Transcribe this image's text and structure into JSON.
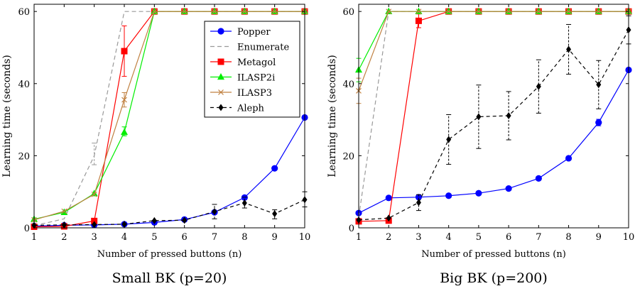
{
  "chart_data": [
    {
      "type": "line",
      "caption": "Small BK (p=20)",
      "xlabel": "Number of pressed buttons (n)",
      "ylabel": "Learning time (seconds)",
      "xlim": [
        1,
        10
      ],
      "ylim": [
        0,
        62
      ],
      "xticks": [
        1,
        2,
        3,
        4,
        5,
        6,
        7,
        8,
        9,
        10
      ],
      "yticks": [
        0,
        20,
        40,
        60
      ],
      "grid": false,
      "legend": "top-right",
      "series": [
        {
          "name": "Popper",
          "color": "#0000ff",
          "dash": "",
          "marker": "circle",
          "x": [
            1,
            2,
            3,
            4,
            5,
            6,
            7,
            8,
            9,
            10
          ],
          "y": [
            0.5,
            0.7,
            0.8,
            1.0,
            1.5,
            2.3,
            4.3,
            8.4,
            16.5,
            30.6
          ],
          "err": []
        },
        {
          "name": "Enumerate",
          "color": "#999999",
          "dash": "6,4",
          "marker": "none",
          "x": [
            1,
            2,
            3,
            4,
            5,
            6,
            7,
            8,
            9,
            10
          ],
          "y": [
            0.6,
            2.5,
            20.0,
            60,
            60,
            60,
            60,
            60,
            60,
            60
          ],
          "err": [
            [
              3,
              17.5,
              23.5
            ]
          ]
        },
        {
          "name": "Metagol",
          "color": "#ff0000",
          "dash": "",
          "marker": "square",
          "x": [
            1,
            2,
            3,
            4,
            5,
            6,
            7,
            8,
            9,
            10
          ],
          "y": [
            0.3,
            0.4,
            1.9,
            49.0,
            60,
            60,
            60,
            60,
            60,
            60
          ],
          "err": [
            [
              4,
              42.0,
              56.0
            ]
          ]
        },
        {
          "name": "ILASP2i",
          "color": "#00ee00",
          "dash": "",
          "marker": "triangle",
          "x": [
            1,
            2,
            3,
            4,
            5,
            6,
            7,
            8,
            9,
            10
          ],
          "y": [
            2.4,
            4.3,
            9.5,
            26.5,
            60,
            60,
            60,
            60,
            60,
            60
          ],
          "err": [
            [
              4,
              25.5,
              28.0
            ]
          ]
        },
        {
          "name": "ILASP3",
          "color": "#c08040",
          "dash": "",
          "marker": "cross",
          "x": [
            1,
            2,
            3,
            4,
            5,
            6,
            7,
            8,
            9,
            10
          ],
          "y": [
            2.2,
            4.6,
            9.3,
            35.5,
            60,
            60,
            60,
            60,
            60,
            60
          ],
          "err": [
            [
              4,
              33.5,
              37.5
            ]
          ]
        },
        {
          "name": "Aleph",
          "color": "#000000",
          "dash": "5,4",
          "marker": "diamond",
          "x": [
            1,
            2,
            3,
            4,
            5,
            6,
            7,
            8,
            9,
            10
          ],
          "y": [
            0.7,
            0.8,
            0.9,
            1.0,
            2.0,
            2.1,
            4.5,
            6.9,
            3.9,
            7.8
          ],
          "err": [
            [
              7,
              2.5,
              6.5
            ],
            [
              8,
              5.5,
              8.5
            ],
            [
              9,
              2.5,
              5.0
            ],
            [
              10,
              5.8,
              10.0
            ]
          ]
        }
      ]
    },
    {
      "type": "line",
      "caption": "Big BK (p=200)",
      "xlabel": "Number of pressed buttons (n)",
      "ylabel": "Learning time (seconds)",
      "xlim": [
        1,
        10
      ],
      "ylim": [
        0,
        62
      ],
      "xticks": [
        1,
        2,
        3,
        4,
        5,
        6,
        7,
        8,
        9,
        10
      ],
      "yticks": [
        0,
        20,
        40,
        60
      ],
      "grid": false,
      "legend": "none",
      "series": [
        {
          "name": "Popper",
          "color": "#0000ff",
          "dash": "",
          "marker": "circle",
          "x": [
            1,
            2,
            3,
            4,
            5,
            6,
            7,
            8,
            9,
            10
          ],
          "y": [
            4.1,
            8.3,
            8.5,
            8.9,
            9.6,
            10.9,
            13.7,
            19.3,
            29.2,
            43.8
          ],
          "err": [
            [
              9,
              28.3,
              30.1
            ]
          ]
        },
        {
          "name": "Enumerate",
          "color": "#999999",
          "dash": "6,4",
          "marker": "none",
          "x": [
            1,
            2,
            3,
            4,
            5,
            6,
            7,
            8,
            9,
            10
          ],
          "y": [
            3.0,
            60,
            60,
            60,
            60,
            60,
            60,
            60,
            60,
            60
          ],
          "err": []
        },
        {
          "name": "Metagol",
          "color": "#ff0000",
          "dash": "",
          "marker": "square",
          "x": [
            1,
            2,
            3,
            4,
            5,
            6,
            7,
            8,
            9,
            10
          ],
          "y": [
            1.8,
            2.0,
            57.4,
            60,
            60,
            60,
            60,
            60,
            60,
            60
          ],
          "err": [
            [
              3,
              55.5,
              59.3
            ]
          ]
        },
        {
          "name": "ILASP2i",
          "color": "#00ee00",
          "dash": "",
          "marker": "triangle",
          "x": [
            1,
            2,
            3,
            4,
            5,
            6,
            7,
            8,
            9,
            10
          ],
          "y": [
            43.8,
            60,
            60,
            60,
            60,
            60,
            60,
            60,
            60,
            60
          ],
          "err": [
            [
              1,
              40.5,
              47.0
            ]
          ]
        },
        {
          "name": "ILASP3",
          "color": "#c08040",
          "dash": "",
          "marker": "cross",
          "x": [
            1,
            2,
            3,
            4,
            5,
            6,
            7,
            8,
            9,
            10
          ],
          "y": [
            38.0,
            60,
            60,
            60,
            60,
            60,
            60,
            60,
            60,
            60
          ],
          "err": [
            [
              1,
              34.5,
              41.5
            ]
          ]
        },
        {
          "name": "Aleph",
          "color": "#000000",
          "dash": "5,4",
          "marker": "diamond",
          "x": [
            1,
            2,
            3,
            4,
            5,
            6,
            7,
            8,
            9,
            10
          ],
          "y": [
            2.2,
            2.7,
            7.0,
            24.5,
            30.8,
            31.1,
            39.2,
            49.5,
            39.7,
            54.9
          ],
          "err": [
            [
              3,
              4.8,
              9.2
            ],
            [
              4,
              17.6,
              31.4
            ],
            [
              5,
              22.0,
              39.6
            ],
            [
              6,
              24.4,
              37.8
            ],
            [
              7,
              31.8,
              46.6
            ],
            [
              8,
              42.6,
              56.4
            ],
            [
              9,
              33.0,
              46.4
            ],
            [
              10,
              51.0,
              58.8
            ]
          ]
        }
      ]
    }
  ]
}
